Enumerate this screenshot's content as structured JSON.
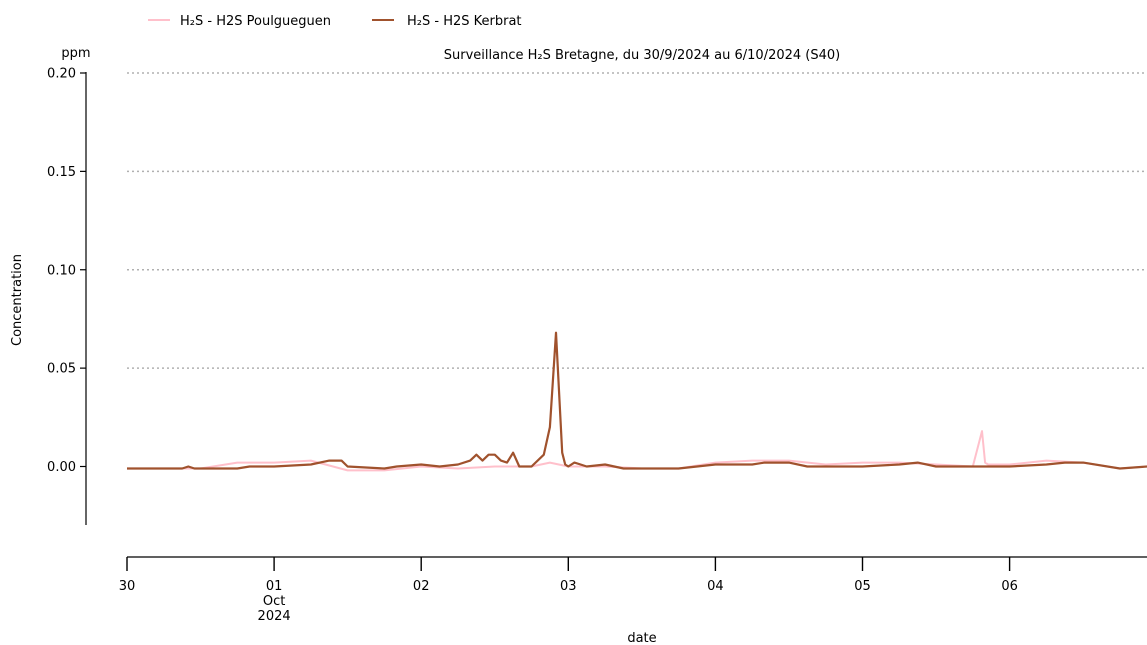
{
  "chart_data": {
    "type": "line",
    "title": "Surveillance H₂S Bretagne, du 30/9/2024 au 6/10/2024 (S40)",
    "xlabel": "date",
    "ylabel": "Concentration",
    "yunit": "ppm",
    "ylim": [
      -0.03,
      0.2
    ],
    "yticks": [
      0.0,
      0.05,
      0.1,
      0.15,
      0.2
    ],
    "ytick_labels": [
      "0.00",
      "0.05",
      "0.10",
      "0.15",
      "0.20"
    ],
    "xlim": [
      "2024-09-30T00:00",
      "2024-10-06T23:59"
    ],
    "xticks": [
      {
        "date": "2024-09-30",
        "label": "30",
        "sub": []
      },
      {
        "date": "2024-10-01",
        "label": "01",
        "sub": [
          "Oct",
          "2024"
        ]
      },
      {
        "date": "2024-10-02",
        "label": "02",
        "sub": []
      },
      {
        "date": "2024-10-03",
        "label": "03",
        "sub": []
      },
      {
        "date": "2024-10-04",
        "label": "04",
        "sub": []
      },
      {
        "date": "2024-10-05",
        "label": "05",
        "sub": []
      },
      {
        "date": "2024-10-06",
        "label": "06",
        "sub": []
      }
    ],
    "grid": "horizontal-dotted",
    "legend_position": "top-left",
    "series": [
      {
        "name": "H₂S - H2S Poulgueguen",
        "color": "#ffc0cb",
        "x": [
          "2024-09-30T00:00",
          "2024-09-30T06:00",
          "2024-09-30T12:00",
          "2024-09-30T18:00",
          "2024-10-01T00:00",
          "2024-10-01T06:00",
          "2024-10-01T12:00",
          "2024-10-01T18:00",
          "2024-10-02T00:00",
          "2024-10-02T06:00",
          "2024-10-02T12:00",
          "2024-10-02T18:00",
          "2024-10-02T21:00",
          "2024-10-03T00:00",
          "2024-10-03T06:00",
          "2024-10-03T12:00",
          "2024-10-03T18:00",
          "2024-10-04T00:00",
          "2024-10-04T06:00",
          "2024-10-04T12:00",
          "2024-10-04T18:00",
          "2024-10-05T00:00",
          "2024-10-05T06:00",
          "2024-10-05T12:00",
          "2024-10-05T18:00",
          "2024-10-05T19:30",
          "2024-10-05T20:00",
          "2024-10-05T20:30",
          "2024-10-06T00:00",
          "2024-10-06T06:00",
          "2024-10-06T12:00",
          "2024-10-06T18:00",
          "2024-10-06T23:59"
        ],
        "y": [
          -0.001,
          -0.001,
          -0.001,
          0.002,
          0.002,
          0.003,
          -0.002,
          -0.002,
          0.0,
          -0.001,
          0.0,
          0.0,
          0.002,
          0.0,
          0.0,
          -0.001,
          -0.001,
          0.002,
          0.003,
          0.003,
          0.001,
          0.002,
          0.002,
          0.001,
          0.0,
          0.018,
          0.002,
          0.001,
          0.001,
          0.003,
          0.002,
          -0.001,
          0.0
        ]
      },
      {
        "name": "H₂S - H2S Kerbrat",
        "color": "#a0522d",
        "x": [
          "2024-09-30T00:00",
          "2024-09-30T09:00",
          "2024-09-30T10:00",
          "2024-09-30T11:00",
          "2024-09-30T18:00",
          "2024-09-30T20:00",
          "2024-10-01T00:00",
          "2024-10-01T06:00",
          "2024-10-01T09:00",
          "2024-10-01T11:00",
          "2024-10-01T12:00",
          "2024-10-01T18:00",
          "2024-10-01T20:00",
          "2024-10-02T00:00",
          "2024-10-02T03:00",
          "2024-10-02T06:00",
          "2024-10-02T08:00",
          "2024-10-02T09:00",
          "2024-10-02T10:00",
          "2024-10-02T11:00",
          "2024-10-02T12:00",
          "2024-10-02T13:00",
          "2024-10-02T14:00",
          "2024-10-02T15:00",
          "2024-10-02T16:00",
          "2024-10-02T17:00",
          "2024-10-02T18:00",
          "2024-10-02T20:00",
          "2024-10-02T21:00",
          "2024-10-02T22:00",
          "2024-10-02T23:00",
          "2024-10-02T23:30",
          "2024-10-03T00:00",
          "2024-10-03T01:00",
          "2024-10-03T02:00",
          "2024-10-03T03:00",
          "2024-10-03T06:00",
          "2024-10-03T09:00",
          "2024-10-03T12:00",
          "2024-10-03T18:00",
          "2024-10-04T00:00",
          "2024-10-04T06:00",
          "2024-10-04T08:00",
          "2024-10-04T12:00",
          "2024-10-04T15:00",
          "2024-10-04T18:00",
          "2024-10-05T00:00",
          "2024-10-05T06:00",
          "2024-10-05T09:00",
          "2024-10-05T12:00",
          "2024-10-05T15:00",
          "2024-10-05T18:00",
          "2024-10-06T00:00",
          "2024-10-06T06:00",
          "2024-10-06T09:00",
          "2024-10-06T12:00",
          "2024-10-06T18:00",
          "2024-10-06T23:59"
        ],
        "y": [
          -0.001,
          -0.001,
          0.0,
          -0.001,
          -0.001,
          0.0,
          0.0,
          0.001,
          0.003,
          0.003,
          0.0,
          -0.001,
          0.0,
          0.001,
          0.0,
          0.001,
          0.003,
          0.006,
          0.003,
          0.006,
          0.006,
          0.003,
          0.002,
          0.007,
          0.0,
          0.0,
          0.0,
          0.006,
          0.02,
          0.068,
          0.007,
          0.001,
          0.0,
          0.002,
          0.001,
          0.0,
          0.001,
          -0.001,
          -0.001,
          -0.001,
          0.001,
          0.001,
          0.002,
          0.002,
          0.0,
          0.0,
          0.0,
          0.001,
          0.002,
          0.0,
          0.0,
          0.0,
          0.0,
          0.001,
          0.002,
          0.002,
          -0.001,
          0.0
        ]
      }
    ]
  }
}
